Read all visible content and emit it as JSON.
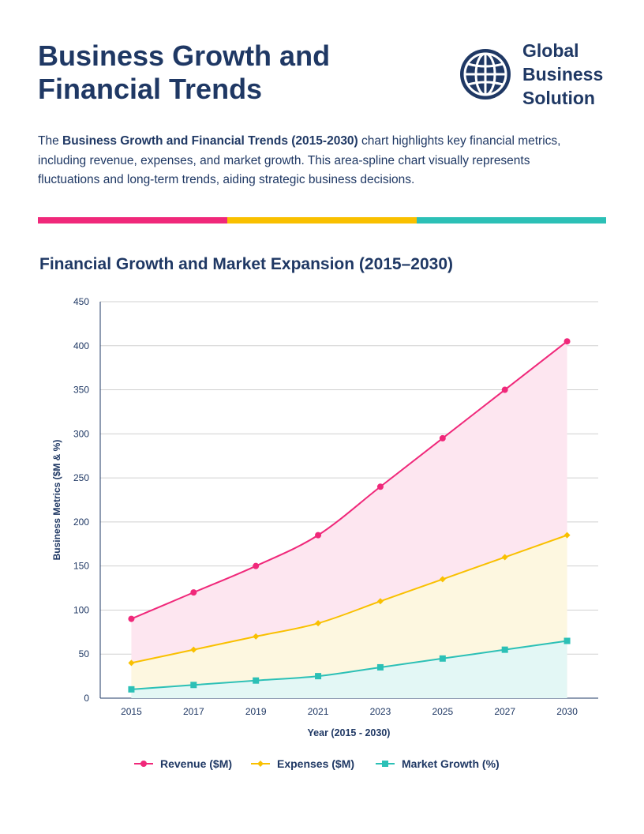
{
  "header": {
    "title": "Business Growth and Financial Trends",
    "logo_text": [
      "Global",
      "Business",
      "Solution"
    ],
    "logo_icon": "globe-icon"
  },
  "description": {
    "prefix": "The ",
    "bold": "Business Growth and Financial Trends (2015-2030)",
    "suffix": " chart highlights key financial metrics, including revenue, expenses, and market growth. This area-spline chart visually represents fluctuations and long-term trends, aiding strategic business decisions."
  },
  "colors": {
    "primary": "#1f3864",
    "pink": "#f0287a",
    "yellow": "#f9c000",
    "teal": "#2cc0b6"
  },
  "chart_data": {
    "type": "area",
    "title": "Financial Growth and Market Expansion (2015–2030)",
    "xlabel": "Year (2015 - 2030)",
    "ylabel": "Business Metrics ($M & %)",
    "categories": [
      "2015",
      "2017",
      "2019",
      "2021",
      "2023",
      "2025",
      "2027",
      "2030"
    ],
    "ylim": [
      0,
      450
    ],
    "yticks": [
      0,
      50,
      100,
      150,
      200,
      250,
      300,
      350,
      400,
      450
    ],
    "grid": true,
    "legend": "bottom",
    "series": [
      {
        "name": "Revenue ($M)",
        "color": "#f0287a",
        "marker": "circle",
        "values": [
          90,
          120,
          150,
          185,
          240,
          295,
          350,
          405
        ]
      },
      {
        "name": "Expenses ($M)",
        "color": "#f9c000",
        "marker": "diamond",
        "values": [
          40,
          55,
          70,
          85,
          110,
          135,
          160,
          185
        ]
      },
      {
        "name": "Market Growth (%)",
        "color": "#2cc0b6",
        "marker": "square",
        "values": [
          10,
          15,
          20,
          25,
          35,
          45,
          55,
          65
        ]
      }
    ]
  }
}
